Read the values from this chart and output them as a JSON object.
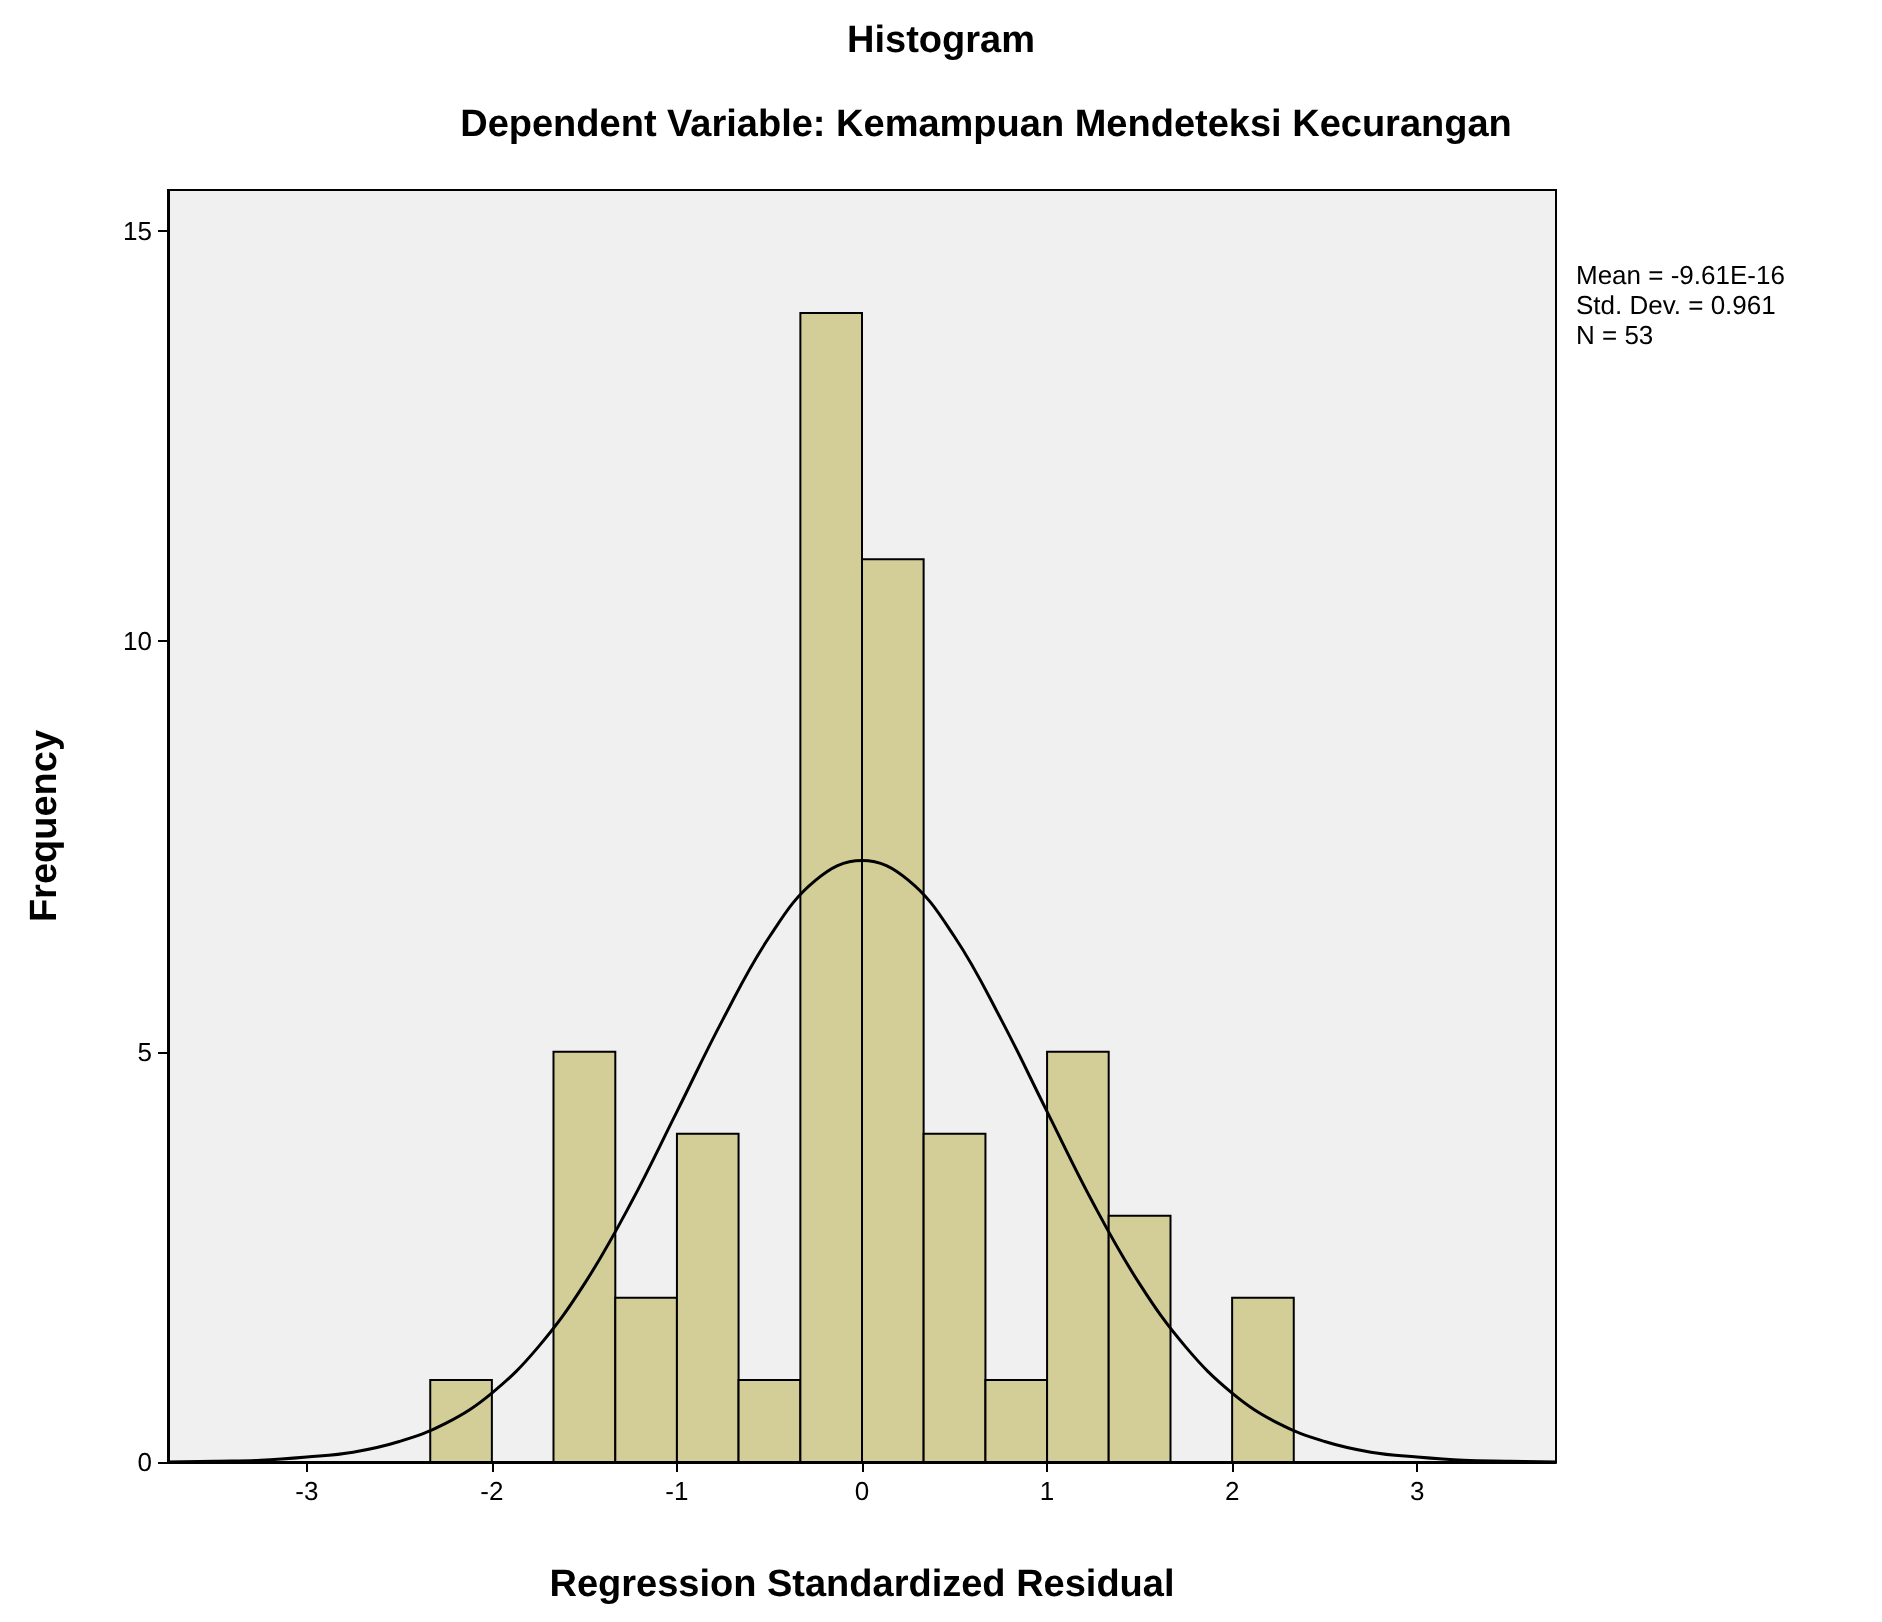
{
  "chart_data": {
    "type": "histogram",
    "title": "Histogram",
    "subtitle": "Dependent Variable: Kemampuan Mendeteksi Kecurangan",
    "xlabel": "Regression Standardized Residual",
    "ylabel": "Frequency",
    "bins": [
      -2.333,
      -2,
      -1.667,
      -1.333,
      -1,
      -0.667,
      -0.333,
      0,
      0.333,
      0.667,
      1,
      1.333,
      1.667,
      2,
      2.333
    ],
    "values": [
      1,
      0,
      5,
      2,
      4,
      1,
      14,
      11,
      4,
      1,
      5,
      3,
      0,
      2
    ],
    "color": "#d3ce98",
    "series": [
      {
        "type": "line",
        "color": "#000000",
        "x": [
          -3.75,
          -3.5,
          -3.25,
          -3,
          -2.75,
          -2.5,
          -2.25,
          -2,
          -1.75,
          -1.5,
          -1.25,
          -1,
          -0.75,
          -0.5,
          -0.25,
          0,
          0.25,
          0.5,
          0.75,
          1,
          1.25,
          1.5,
          1.75,
          2,
          2.25,
          2.5,
          2.75,
          3,
          3.25,
          3.5,
          3.75
        ],
        "values": [
          0,
          0.01,
          0.02,
          0.06,
          0.12,
          0.25,
          0.47,
          0.84,
          1.4,
          2.17,
          3.15,
          4.27,
          5.4,
          6.4,
          7.09,
          7.33,
          7.09,
          6.4,
          5.4,
          4.27,
          3.15,
          2.17,
          1.4,
          0.84,
          0.47,
          0.25,
          0.12,
          0.06,
          0.02,
          0.01,
          0
        ]
      }
    ],
    "xlim": [
      -3.75,
      3.75
    ],
    "xticks": [
      -3,
      -2,
      -1,
      0,
      1,
      2,
      3
    ],
    "ylim": [
      0,
      15.5
    ],
    "yticks": [
      0,
      5,
      10,
      15
    ],
    "annotations": [
      "Mean = -9.61E-16",
      "Std. Dev. = 0.961",
      "N = 53"
    ]
  }
}
